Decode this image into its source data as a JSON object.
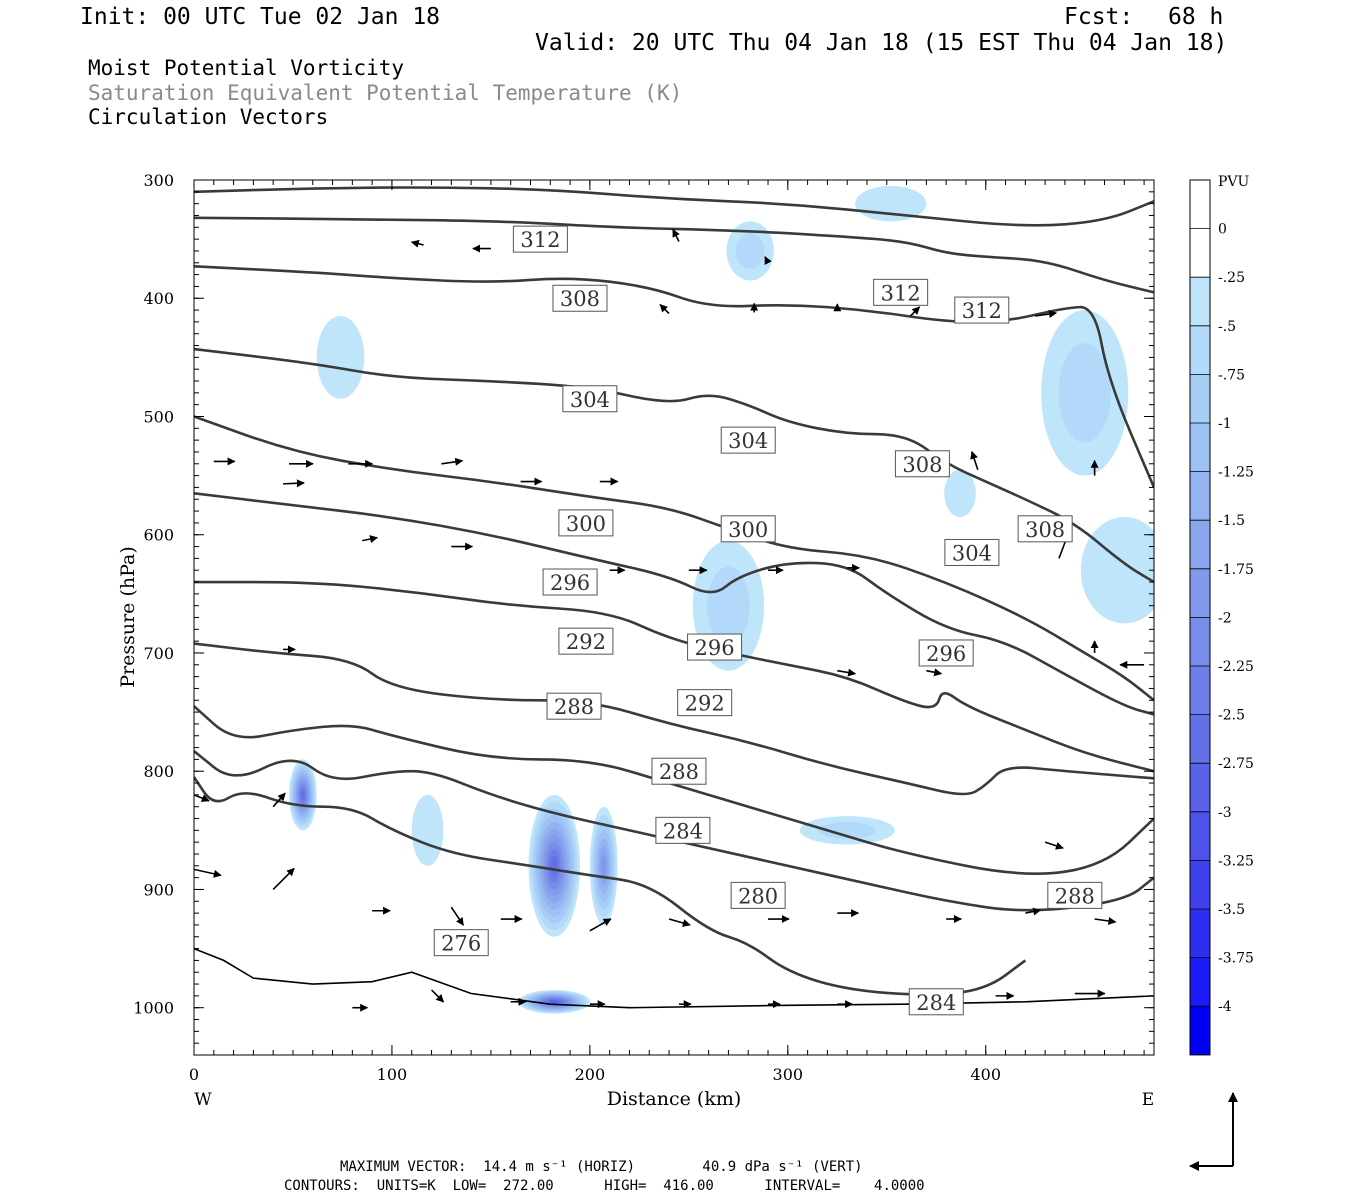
{
  "header": {
    "init": "Init: 00 UTC Tue 02 Jan 18",
    "fcst_label": "Fcst:",
    "fcst_value": "68 h",
    "valid": "Valid: 20 UTC Thu 04 Jan 18 (15 EST Thu 04 Jan 18)"
  },
  "fields": [
    {
      "label": "Moist Potential Vorticity",
      "color": "#000000"
    },
    {
      "label": "Saturation Equivalent Potential Temperature (K)",
      "color": "#8a8a8a"
    },
    {
      "label": "Circulation Vectors",
      "color": "#000000"
    }
  ],
  "footer": {
    "line1": "MAXIMUM VECTOR:  14.4 m s⁻¹ (HORIZ)        40.9 dPa s⁻¹ (VERT)",
    "line2": "CONTOURS:  UNITS=K  LOW=  272.00      HIGH=  416.00      INTERVAL=    4.0000"
  },
  "chart_data": {
    "type": "cross-section",
    "xlabel": "Distance (km)",
    "ylabel": "Pressure (hPa)",
    "xlim": [
      0,
      485
    ],
    "ylim": [
      300,
      1040
    ],
    "x_ticks": [
      0,
      100,
      200,
      300,
      400
    ],
    "y_ticks": [
      300,
      400,
      500,
      600,
      700,
      800,
      900,
      1000
    ],
    "x_end_labels": {
      "left": "W",
      "right": "E"
    },
    "grid": false,
    "colorbar": {
      "units": "PVU",
      "tick_labels": [
        "0",
        "-.25",
        "-.5",
        "-.75",
        "-1",
        "-1.25",
        "-1.5",
        "-1.75",
        "-2",
        "-2.25",
        "-2.5",
        "-2.75",
        "-3",
        "-3.25",
        "-3.5",
        "-3.75",
        "-4"
      ],
      "colors": [
        "#ffffff",
        "#ffffff",
        "#bfe5fb",
        "#b2d9f9",
        "#a6cdf6",
        "#9cc1f4",
        "#93b4f1",
        "#8aa7ee",
        "#819aec",
        "#788cea",
        "#6e7ee9",
        "#6470e8",
        "#5962e9",
        "#4c52ea",
        "#3e41ec",
        "#2d2ef0",
        "#1a1af4",
        "#0000fa"
      ]
    },
    "contour_units": "K",
    "contours": [
      {
        "value": 312,
        "points": [
          [
            0,
            310
          ],
          [
            60,
            307
          ],
          [
            120,
            306
          ],
          [
            180,
            308
          ],
          [
            240,
            316
          ],
          [
            300,
            320
          ],
          [
            360,
            330
          ],
          [
            420,
            340
          ],
          [
            460,
            335
          ],
          [
            485,
            318
          ]
        ]
      },
      {
        "value": 312,
        "points": [
          [
            0,
            332
          ],
          [
            80,
            333
          ],
          [
            160,
            335
          ],
          [
            210,
            340
          ],
          [
            280,
            343
          ],
          [
            330,
            348
          ],
          [
            360,
            352
          ],
          [
            380,
            362
          ],
          [
            400,
            365
          ],
          [
            430,
            368
          ],
          [
            460,
            385
          ],
          [
            485,
            395
          ]
        ]
      },
      {
        "value": 308,
        "points": [
          [
            0,
            373
          ],
          [
            60,
            378
          ],
          [
            100,
            383
          ],
          [
            150,
            387
          ],
          [
            190,
            382
          ],
          [
            230,
            390
          ],
          [
            260,
            408
          ],
          [
            300,
            405
          ],
          [
            340,
            410
          ],
          [
            380,
            420
          ],
          [
            410,
            420
          ],
          [
            440,
            408
          ],
          [
            455,
            407
          ],
          [
            462,
            470
          ],
          [
            485,
            560
          ]
        ]
      },
      {
        "value": 304,
        "points": [
          [
            0,
            443
          ],
          [
            60,
            455
          ],
          [
            100,
            467
          ],
          [
            150,
            470
          ],
          [
            200,
            475
          ],
          [
            240,
            490
          ],
          [
            260,
            480
          ],
          [
            280,
            490
          ],
          [
            300,
            505
          ],
          [
            330,
            515
          ],
          [
            360,
            515
          ],
          [
            380,
            540
          ],
          [
            400,
            555
          ],
          [
            420,
            570
          ],
          [
            445,
            590
          ],
          [
            470,
            625
          ],
          [
            485,
            640
          ]
        ]
      },
      {
        "value": 300,
        "points": [
          [
            0,
            500
          ],
          [
            50,
            530
          ],
          [
            100,
            545
          ],
          [
            150,
            555
          ],
          [
            200,
            568
          ],
          [
            240,
            577
          ],
          [
            270,
            595
          ],
          [
            300,
            612
          ],
          [
            340,
            617
          ],
          [
            380,
            640
          ],
          [
            420,
            670
          ],
          [
            450,
            700
          ],
          [
            470,
            720
          ],
          [
            485,
            740
          ]
        ]
      },
      {
        "value": 296,
        "points": [
          [
            0,
            565
          ],
          [
            50,
            575
          ],
          [
            100,
            585
          ],
          [
            150,
            600
          ],
          [
            200,
            620
          ],
          [
            240,
            635
          ],
          [
            262,
            653
          ],
          [
            275,
            635
          ],
          [
            300,
            623
          ],
          [
            330,
            625
          ],
          [
            350,
            650
          ],
          [
            380,
            680
          ],
          [
            410,
            690
          ],
          [
            440,
            718
          ],
          [
            470,
            745
          ],
          [
            485,
            752
          ]
        ]
      },
      {
        "value": 292,
        "points": [
          [
            0,
            640
          ],
          [
            60,
            640
          ],
          [
            110,
            648
          ],
          [
            160,
            660
          ],
          [
            210,
            665
          ],
          [
            240,
            688
          ],
          [
            270,
            700
          ],
          [
            300,
            710
          ],
          [
            330,
            720
          ],
          [
            360,
            742
          ],
          [
            375,
            748
          ],
          [
            378,
            730
          ],
          [
            390,
            745
          ],
          [
            420,
            765
          ],
          [
            450,
            785
          ],
          [
            485,
            800
          ]
        ]
      },
      {
        "value": 288,
        "points": [
          [
            0,
            692
          ],
          [
            40,
            700
          ],
          [
            80,
            705
          ],
          [
            100,
            730
          ],
          [
            150,
            740
          ],
          [
            200,
            740
          ],
          [
            240,
            760
          ],
          [
            280,
            775
          ],
          [
            320,
            795
          ],
          [
            360,
            810
          ],
          [
            390,
            822
          ],
          [
            400,
            812
          ],
          [
            410,
            795
          ],
          [
            440,
            800
          ],
          [
            485,
            806
          ]
        ]
      },
      {
        "value": 284,
        "points": [
          [
            0,
            745
          ],
          [
            20,
            775
          ],
          [
            50,
            765
          ],
          [
            80,
            760
          ],
          [
            100,
            770
          ],
          [
            150,
            790
          ],
          [
            200,
            790
          ],
          [
            240,
            810
          ],
          [
            280,
            830
          ],
          [
            320,
            850
          ],
          [
            360,
            870
          ],
          [
            420,
            890
          ],
          [
            460,
            880
          ],
          [
            485,
            840
          ]
        ]
      },
      {
        "value": 280,
        "points": [
          [
            0,
            783
          ],
          [
            20,
            810
          ],
          [
            50,
            785
          ],
          [
            70,
            810
          ],
          [
            100,
            800
          ],
          [
            120,
            800
          ],
          [
            150,
            820
          ],
          [
            180,
            835
          ],
          [
            220,
            850
          ],
          [
            260,
            865
          ],
          [
            300,
            880
          ],
          [
            340,
            895
          ],
          [
            380,
            910
          ],
          [
            420,
            920
          ],
          [
            470,
            910
          ],
          [
            485,
            890
          ]
        ]
      },
      {
        "value": 276,
        "points": [
          [
            0,
            805
          ],
          [
            10,
            830
          ],
          [
            25,
            815
          ],
          [
            50,
            830
          ],
          [
            80,
            830
          ],
          [
            100,
            850
          ],
          [
            130,
            870
          ],
          [
            170,
            880
          ],
          [
            200,
            888
          ],
          [
            230,
            895
          ],
          [
            260,
            935
          ],
          [
            280,
            945
          ],
          [
            300,
            970
          ],
          [
            330,
            985
          ],
          [
            370,
            990
          ],
          [
            400,
            985
          ],
          [
            420,
            960
          ]
        ]
      }
    ],
    "contour_labels": [
      {
        "value": 312,
        "x": 175,
        "p": 350
      },
      {
        "value": 308,
        "x": 195,
        "p": 400
      },
      {
        "value": 304,
        "x": 200,
        "p": 485
      },
      {
        "value": 300,
        "x": 198,
        "p": 590
      },
      {
        "value": 296,
        "x": 190,
        "p": 640
      },
      {
        "value": 292,
        "x": 198,
        "p": 690
      },
      {
        "value": 288,
        "x": 192,
        "p": 745
      },
      {
        "value": 304,
        "x": 280,
        "p": 520
      },
      {
        "value": 300,
        "x": 280,
        "p": 595
      },
      {
        "value": 296,
        "x": 263,
        "p": 695
      },
      {
        "value": 292,
        "x": 258,
        "p": 742
      },
      {
        "value": 288,
        "x": 245,
        "p": 800
      },
      {
        "value": 284,
        "x": 247,
        "p": 850
      },
      {
        "value": 280,
        "x": 285,
        "p": 905
      },
      {
        "value": 276,
        "x": 135,
        "p": 945
      },
      {
        "value": 312,
        "x": 357,
        "p": 395
      },
      {
        "value": 312,
        "x": 398,
        "p": 410
      },
      {
        "value": 308,
        "x": 368,
        "p": 540
      },
      {
        "value": 304,
        "x": 393,
        "p": 615
      },
      {
        "value": 308,
        "x": 430,
        "p": 595
      },
      {
        "value": 296,
        "x": 380,
        "p": 700
      },
      {
        "value": 288,
        "x": 445,
        "p": 905
      },
      {
        "value": 284,
        "x": 375,
        "p": 995
      }
    ],
    "pv_regions": [
      {
        "x": 74,
        "p": 450,
        "rx": 12,
        "rp": 35,
        "level": 2
      },
      {
        "x": 281,
        "p": 360,
        "rx": 12,
        "rp": 25,
        "level": 3
      },
      {
        "x": 352,
        "p": 320,
        "rx": 18,
        "rp": 15,
        "level": 2
      },
      {
        "x": 450,
        "p": 480,
        "rx": 22,
        "rp": 70,
        "level": 3
      },
      {
        "x": 470,
        "p": 630,
        "rx": 22,
        "rp": 45,
        "level": 2
      },
      {
        "x": 270,
        "p": 660,
        "rx": 18,
        "rp": 55,
        "level": 3
      },
      {
        "x": 387,
        "p": 565,
        "rx": 8,
        "rp": 20,
        "level": 2
      },
      {
        "x": 330,
        "p": 850,
        "rx": 24,
        "rp": 12,
        "level": 3
      },
      {
        "x": 55,
        "p": 820,
        "rx": 7,
        "rp": 30,
        "level": 11
      },
      {
        "x": 182,
        "p": 880,
        "rx": 13,
        "rp": 60,
        "level": 11
      },
      {
        "x": 207,
        "p": 880,
        "rx": 7,
        "rp": 50,
        "level": 8
      },
      {
        "x": 182,
        "p": 995,
        "rx": 18,
        "rp": 10,
        "level": 12
      },
      {
        "x": 118,
        "p": 850,
        "rx": 8,
        "rp": 30,
        "level": 2
      }
    ],
    "vectors": [
      {
        "x": 40,
        "p": 830,
        "u": 4,
        "w": 4.5
      },
      {
        "x": 40,
        "p": 900,
        "u": 7,
        "w": 7
      },
      {
        "x": 45,
        "p": 557,
        "u": 7,
        "w": 0.3
      },
      {
        "x": 45,
        "p": 697,
        "u": 4,
        "w": 0
      },
      {
        "x": 10,
        "p": 538,
        "u": 7,
        "w": 0
      },
      {
        "x": 48,
        "p": 540,
        "u": 8,
        "w": 0
      },
      {
        "x": 78,
        "p": 540,
        "u": 8,
        "w": 0
      },
      {
        "x": 125,
        "p": 540,
        "u": 7,
        "w": 1
      },
      {
        "x": 165,
        "p": 555,
        "u": 7,
        "w": 0
      },
      {
        "x": 205,
        "p": 555,
        "u": 6,
        "w": 0
      },
      {
        "x": 130,
        "p": 610,
        "u": 7,
        "w": 0
      },
      {
        "x": 85,
        "p": 605,
        "u": 5,
        "w": 1
      },
      {
        "x": 210,
        "p": 630,
        "u": 5,
        "w": 0
      },
      {
        "x": 250,
        "p": 630,
        "u": 6,
        "w": 0
      },
      {
        "x": 290,
        "p": 630,
        "u": 5,
        "w": 0
      },
      {
        "x": 330,
        "p": 628,
        "u": 4,
        "w": 0
      },
      {
        "x": 325,
        "p": 715,
        "u": 6,
        "w": -1
      },
      {
        "x": 370,
        "p": 715,
        "u": 5,
        "w": -1
      },
      {
        "x": 480,
        "p": 710,
        "u": -8,
        "w": 0
      },
      {
        "x": 430,
        "p": 860,
        "u": 6,
        "w": -2
      },
      {
        "x": 380,
        "p": 925,
        "u": 5,
        "w": 0
      },
      {
        "x": 155,
        "p": 925,
        "u": 7,
        "w": 0
      },
      {
        "x": 90,
        "p": 918,
        "u": 6,
        "w": 0
      },
      {
        "x": 200,
        "p": 935,
        "u": 7,
        "w": 4
      },
      {
        "x": 240,
        "p": 925,
        "u": 7,
        "w": -2
      },
      {
        "x": 290,
        "p": 925,
        "u": 7,
        "w": 0
      },
      {
        "x": 325,
        "p": 920,
        "u": 7,
        "w": 0
      },
      {
        "x": 420,
        "p": 920,
        "u": 5,
        "w": 1
      },
      {
        "x": 455,
        "p": 925,
        "u": 7,
        "w": -1
      },
      {
        "x": 130,
        "p": 915,
        "u": 4,
        "w": -6
      },
      {
        "x": 120,
        "p": 985,
        "u": 4,
        "w": -4
      },
      {
        "x": 80,
        "p": 1000,
        "u": 5,
        "w": 0
      },
      {
        "x": 160,
        "p": 995,
        "u": 5,
        "w": 0
      },
      {
        "x": 200,
        "p": 997,
        "u": 5,
        "w": 0
      },
      {
        "x": 245,
        "p": 997,
        "u": 4,
        "w": 0
      },
      {
        "x": 290,
        "p": 997,
        "u": 4,
        "w": 0
      },
      {
        "x": 325,
        "p": 997,
        "u": 5,
        "w": 0
      },
      {
        "x": 360,
        "p": 997,
        "u": 6,
        "w": 0
      },
      {
        "x": 405,
        "p": 990,
        "u": 6,
        "w": 0
      },
      {
        "x": 445,
        "p": 988,
        "u": 10,
        "w": 0
      },
      {
        "x": 0,
        "p": 883,
        "u": 9,
        "w": -2
      },
      {
        "x": 0,
        "p": 820,
        "u": 5,
        "w": -2
      },
      {
        "x": 455,
        "p": 550,
        "u": 0,
        "w": 5
      },
      {
        "x": 455,
        "p": 700,
        "u": 0,
        "w": 4
      },
      {
        "x": 437,
        "p": 620,
        "u": 3,
        "w": 8
      },
      {
        "x": 365,
        "p": 540,
        "u": 1,
        "w": 4
      },
      {
        "x": 396,
        "p": 545,
        "u": -2,
        "w": 6
      },
      {
        "x": 425,
        "p": 415,
        "u": 7,
        "w": 1
      },
      {
        "x": 362,
        "p": 415,
        "u": 3,
        "w": 3
      },
      {
        "x": 325,
        "p": 410,
        "u": 0,
        "w": 2
      },
      {
        "x": 283,
        "p": 412,
        "u": 0,
        "w": 3
      },
      {
        "x": 240,
        "p": 413,
        "u": -3,
        "w": 3
      },
      {
        "x": 150,
        "p": 358,
        "u": -6,
        "w": 0
      },
      {
        "x": 116,
        "p": 355,
        "u": -4,
        "w": 1
      },
      {
        "x": 245,
        "p": 352,
        "u": -2,
        "w": 4
      },
      {
        "x": 290,
        "p": 370,
        "u": -1,
        "w": 2
      }
    ]
  }
}
